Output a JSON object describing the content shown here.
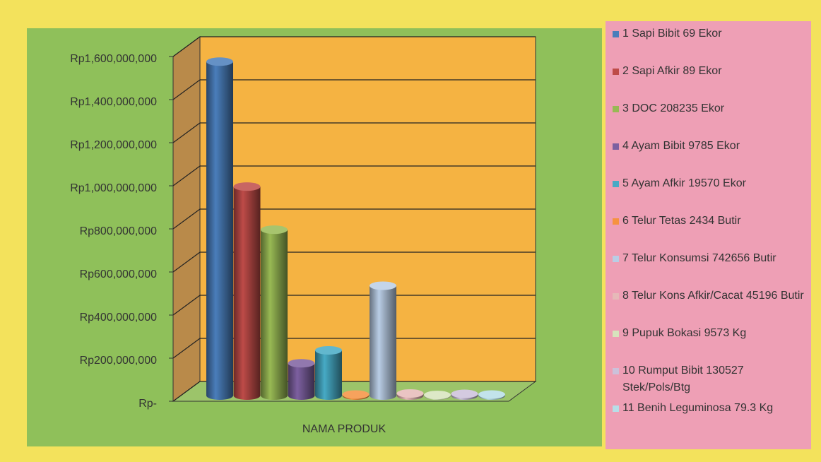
{
  "chart_data": {
    "type": "bar3d",
    "categories": [
      "NAMA PRODUK"
    ],
    "ylim": [
      0,
      1600000000
    ],
    "yticks": [
      {
        "value": 0,
        "label": "Rp-"
      },
      {
        "value": 200000000,
        "label": "Rp200,000,000"
      },
      {
        "value": 400000000,
        "label": "Rp400,000,000"
      },
      {
        "value": 600000000,
        "label": "Rp600,000,000"
      },
      {
        "value": 800000000,
        "label": "Rp800,000,000"
      },
      {
        "value": 1000000000,
        "label": "Rp1,000,000,000"
      },
      {
        "value": 1200000000,
        "label": "Rp1,200,000,000"
      },
      {
        "value": 1400000000,
        "label": "Rp1,400,000,000"
      },
      {
        "value": 1600000000,
        "label": "Rp1,600,000,000"
      }
    ],
    "grid": true,
    "series": [
      {
        "name": "1 Sapi Bibit 69 Ekor",
        "color": "#4a7ebb",
        "values": [
          1550000000
        ]
      },
      {
        "name": "2 Sapi Afkir 89 Ekor",
        "color": "#be4b48",
        "values": [
          970000000
        ]
      },
      {
        "name": "3 DOC 208235 Ekor",
        "color": "#98b954",
        "values": [
          770000000
        ]
      },
      {
        "name": "4 Ayam Bibit 9785 Ekor",
        "color": "#7d60a0",
        "values": [
          150000000
        ]
      },
      {
        "name": "5 Ayam Afkir 19570 Ekor",
        "color": "#46aac5",
        "values": [
          210000000
        ]
      },
      {
        "name": "6 Telur Tetas 2434 Butir",
        "color": "#f69240",
        "values": [
          5000000
        ]
      },
      {
        "name": "7 Telur Konsumsi 742656 Butir",
        "color": "#b9cde5",
        "values": [
          510000000
        ]
      },
      {
        "name": "8 Telur Kons Afkir/Cacat 45196 Butir",
        "color": "#e6b9b8",
        "values": [
          10000000
        ]
      },
      {
        "name": "9 Pupuk Bokasi 9573 Kg",
        "color": "#d7e4bd",
        "values": [
          3000000
        ]
      },
      {
        "name": "10 Rumput Bibit 130527 Stek/Pols/Btg",
        "color": "#ccc1da",
        "values": [
          8000000
        ]
      },
      {
        "name": "11 Benih Leguminosa 79.3 Kg",
        "color": "#b7dee8",
        "values": [
          5000000
        ]
      }
    ]
  }
}
